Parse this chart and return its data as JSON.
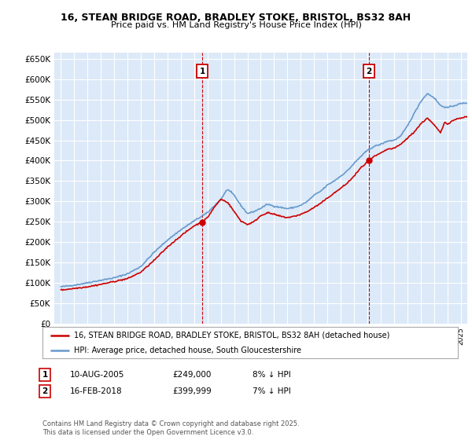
{
  "title1": "16, STEAN BRIDGE ROAD, BRADLEY STOKE, BRISTOL, BS32 8AH",
  "title2": "Price paid vs. HM Land Registry's House Price Index (HPI)",
  "ylabel_ticks": [
    "£0",
    "£50K",
    "£100K",
    "£150K",
    "£200K",
    "£250K",
    "£300K",
    "£350K",
    "£400K",
    "£450K",
    "£500K",
    "£550K",
    "£600K",
    "£650K"
  ],
  "ytick_vals": [
    0,
    50000,
    100000,
    150000,
    200000,
    250000,
    300000,
    350000,
    400000,
    450000,
    500000,
    550000,
    600000,
    650000
  ],
  "ylim": [
    0,
    665000
  ],
  "xlim_start": 1994.5,
  "xlim_end": 2025.5,
  "sale1_x": 2005.61,
  "sale1_y": 249000,
  "sale2_x": 2018.12,
  "sale2_y": 399999,
  "legend_line1": "16, STEAN BRIDGE ROAD, BRADLEY STOKE, BRISTOL, BS32 8AH (detached house)",
  "legend_line2": "HPI: Average price, detached house, South Gloucestershire",
  "footnote": "Contains HM Land Registry data © Crown copyright and database right 2025.\nThis data is licensed under the Open Government Licence v3.0.",
  "bg_color": "#dce9f8",
  "grid_color": "#ffffff",
  "hpi_color": "#6699cc",
  "price_color": "#cc0000",
  "marker_box_color": "#cc0000",
  "sale1_date": "10-AUG-2005",
  "sale1_price": "£249,000",
  "sale1_pct": "8% ↓ HPI",
  "sale2_date": "16-FEB-2018",
  "sale2_price": "£399,999",
  "sale2_pct": "7% ↓ HPI"
}
